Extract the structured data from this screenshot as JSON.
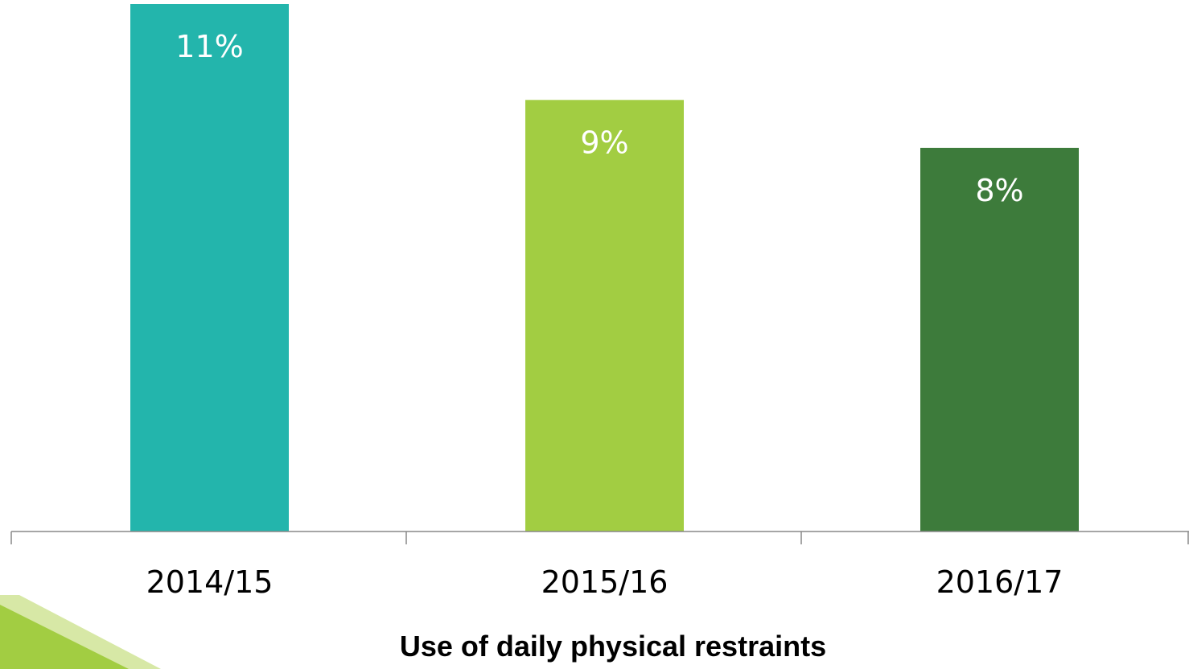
{
  "chart_data": {
    "type": "bar",
    "title": "",
    "xlabel": "Use of daily physical restraints",
    "ylabel": "",
    "categories": [
      "2014/15",
      "2015/16",
      "2016/17"
    ],
    "values": [
      11,
      9,
      8
    ],
    "data_labels": [
      "11%",
      "9%",
      "8%"
    ],
    "colors": [
      "#23b5ac",
      "#a2cd42",
      "#3d7b3b"
    ],
    "ylim": [
      0,
      12
    ],
    "grid": false,
    "legend": "none"
  },
  "decoration": {
    "corner_colors": [
      "#a2cd42",
      "#d7e8a6"
    ]
  }
}
